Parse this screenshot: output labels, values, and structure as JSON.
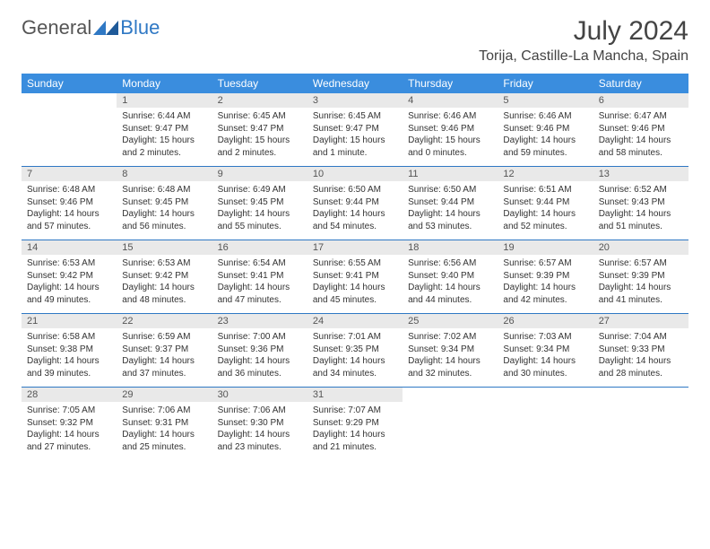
{
  "logo": {
    "text1": "General",
    "text2": "Blue"
  },
  "title": "July 2024",
  "location": "Torija, Castille-La Mancha, Spain",
  "calendar": {
    "type": "table",
    "header_bg": "#3a8dde",
    "header_fg": "#ffffff",
    "daynum_bg": "#e9e9e9",
    "divider_color": "#2f78c4",
    "text_color": "#333333",
    "body_fontsize": 10,
    "header_fontsize": 12,
    "title_fontsize": 30,
    "location_fontsize": 16,
    "columns": [
      "Sunday",
      "Monday",
      "Tuesday",
      "Wednesday",
      "Thursday",
      "Friday",
      "Saturday"
    ],
    "weeks": [
      [
        null,
        {
          "n": "1",
          "sr": "6:44 AM",
          "ss": "9:47 PM",
          "dl": "15 hours and 2 minutes."
        },
        {
          "n": "2",
          "sr": "6:45 AM",
          "ss": "9:47 PM",
          "dl": "15 hours and 2 minutes."
        },
        {
          "n": "3",
          "sr": "6:45 AM",
          "ss": "9:47 PM",
          "dl": "15 hours and 1 minute."
        },
        {
          "n": "4",
          "sr": "6:46 AM",
          "ss": "9:46 PM",
          "dl": "15 hours and 0 minutes."
        },
        {
          "n": "5",
          "sr": "6:46 AM",
          "ss": "9:46 PM",
          "dl": "14 hours and 59 minutes."
        },
        {
          "n": "6",
          "sr": "6:47 AM",
          "ss": "9:46 PM",
          "dl": "14 hours and 58 minutes."
        }
      ],
      [
        {
          "n": "7",
          "sr": "6:48 AM",
          "ss": "9:46 PM",
          "dl": "14 hours and 57 minutes."
        },
        {
          "n": "8",
          "sr": "6:48 AM",
          "ss": "9:45 PM",
          "dl": "14 hours and 56 minutes."
        },
        {
          "n": "9",
          "sr": "6:49 AM",
          "ss": "9:45 PM",
          "dl": "14 hours and 55 minutes."
        },
        {
          "n": "10",
          "sr": "6:50 AM",
          "ss": "9:44 PM",
          "dl": "14 hours and 54 minutes."
        },
        {
          "n": "11",
          "sr": "6:50 AM",
          "ss": "9:44 PM",
          "dl": "14 hours and 53 minutes."
        },
        {
          "n": "12",
          "sr": "6:51 AM",
          "ss": "9:44 PM",
          "dl": "14 hours and 52 minutes."
        },
        {
          "n": "13",
          "sr": "6:52 AM",
          "ss": "9:43 PM",
          "dl": "14 hours and 51 minutes."
        }
      ],
      [
        {
          "n": "14",
          "sr": "6:53 AM",
          "ss": "9:42 PM",
          "dl": "14 hours and 49 minutes."
        },
        {
          "n": "15",
          "sr": "6:53 AM",
          "ss": "9:42 PM",
          "dl": "14 hours and 48 minutes."
        },
        {
          "n": "16",
          "sr": "6:54 AM",
          "ss": "9:41 PM",
          "dl": "14 hours and 47 minutes."
        },
        {
          "n": "17",
          "sr": "6:55 AM",
          "ss": "9:41 PM",
          "dl": "14 hours and 45 minutes."
        },
        {
          "n": "18",
          "sr": "6:56 AM",
          "ss": "9:40 PM",
          "dl": "14 hours and 44 minutes."
        },
        {
          "n": "19",
          "sr": "6:57 AM",
          "ss": "9:39 PM",
          "dl": "14 hours and 42 minutes."
        },
        {
          "n": "20",
          "sr": "6:57 AM",
          "ss": "9:39 PM",
          "dl": "14 hours and 41 minutes."
        }
      ],
      [
        {
          "n": "21",
          "sr": "6:58 AM",
          "ss": "9:38 PM",
          "dl": "14 hours and 39 minutes."
        },
        {
          "n": "22",
          "sr": "6:59 AM",
          "ss": "9:37 PM",
          "dl": "14 hours and 37 minutes."
        },
        {
          "n": "23",
          "sr": "7:00 AM",
          "ss": "9:36 PM",
          "dl": "14 hours and 36 minutes."
        },
        {
          "n": "24",
          "sr": "7:01 AM",
          "ss": "9:35 PM",
          "dl": "14 hours and 34 minutes."
        },
        {
          "n": "25",
          "sr": "7:02 AM",
          "ss": "9:34 PM",
          "dl": "14 hours and 32 minutes."
        },
        {
          "n": "26",
          "sr": "7:03 AM",
          "ss": "9:34 PM",
          "dl": "14 hours and 30 minutes."
        },
        {
          "n": "27",
          "sr": "7:04 AM",
          "ss": "9:33 PM",
          "dl": "14 hours and 28 minutes."
        }
      ],
      [
        {
          "n": "28",
          "sr": "7:05 AM",
          "ss": "9:32 PM",
          "dl": "14 hours and 27 minutes."
        },
        {
          "n": "29",
          "sr": "7:06 AM",
          "ss": "9:31 PM",
          "dl": "14 hours and 25 minutes."
        },
        {
          "n": "30",
          "sr": "7:06 AM",
          "ss": "9:30 PM",
          "dl": "14 hours and 23 minutes."
        },
        {
          "n": "31",
          "sr": "7:07 AM",
          "ss": "9:29 PM",
          "dl": "14 hours and 21 minutes."
        },
        null,
        null,
        null
      ]
    ]
  },
  "labels": {
    "sunrise": "Sunrise:",
    "sunset": "Sunset:",
    "daylight": "Daylight:"
  }
}
